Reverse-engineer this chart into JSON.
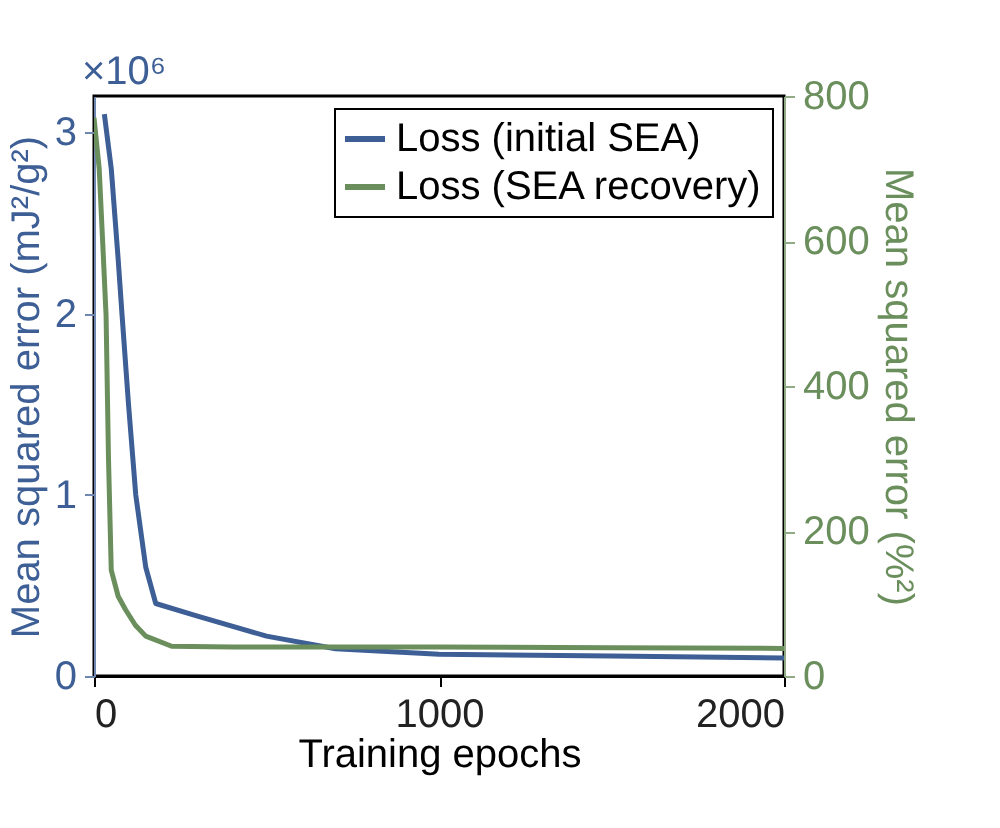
{
  "chart_data": {
    "type": "line",
    "xlabel": "Training epochs",
    "ylabel": "Mean squared error (mJ²/g²)",
    "y2label": "Mean squared error (%²)",
    "annotations": [
      "×10⁶"
    ],
    "xlim": [
      0,
      2000
    ],
    "xticks": [
      0,
      1000,
      2000
    ],
    "ylim": [
      0,
      3.2
    ],
    "yticks": [
      0,
      1,
      2,
      3
    ],
    "y2lim": [
      0,
      800
    ],
    "y2ticks": [
      0,
      200,
      400,
      600,
      800
    ],
    "grid": false,
    "legend": "top right",
    "marker": "none",
    "line_style": "solid",
    "series": [
      {
        "name": "Loss (initial SEA)",
        "color": "#3d5f96",
        "x": [
          30,
          50,
          70,
          81,
          100,
          121,
          150,
          179,
          300,
          500,
          700,
          1000,
          1500,
          2000
        ],
        "values": [
          3.1,
          2.8,
          2.3,
          2.0,
          1.5,
          1.0,
          0.6,
          0.4,
          0.33,
          0.22,
          0.15,
          0.12,
          0.11,
          0.1
        ]
      },
      {
        "name": "Loss (SEA recovery)",
        "color": "#6b8f5c",
        "axis": "y2",
        "x": [
          0,
          15,
          25,
          35,
          42,
          50,
          70,
          92,
          120,
          150,
          225,
          400,
          1000,
          1500,
          2000
        ],
        "values": [
          770,
          700,
          600,
          497,
          300,
          146,
          110,
          91,
          70,
          55,
          41,
          40,
          40,
          39,
          38
        ]
      }
    ]
  }
}
